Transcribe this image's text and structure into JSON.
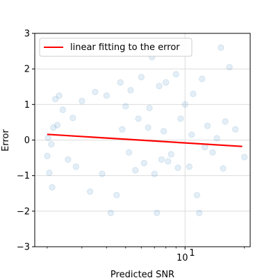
{
  "chart_data": {
    "type": "scatter",
    "xlabel": "Predicted SNR",
    "ylabel": "Error",
    "xscale": "log",
    "xlim": [
      1.73,
      21.4
    ],
    "ylim": [
      -3,
      3
    ],
    "grid": true,
    "legend_position": "top-left",
    "x_major_ticks": [
      {
        "value": 10,
        "label": "10",
        "exponent": "1"
      }
    ],
    "x_minor_ticks": [
      2,
      3,
      4,
      5,
      6,
      7,
      8,
      9,
      20
    ],
    "y_ticks": [
      {
        "value": -3,
        "label": "−3"
      },
      {
        "value": -2,
        "label": "−2"
      },
      {
        "value": -1,
        "label": "−1"
      },
      {
        "value": 0,
        "label": "0"
      },
      {
        "value": 1,
        "label": "1"
      },
      {
        "value": 2,
        "label": "2"
      },
      {
        "value": 3,
        "label": "3"
      }
    ],
    "series": [
      {
        "kind": "scatter",
        "color": "#1f77b4",
        "alpha": 0.12,
        "points": [
          [
            2.02,
            0.06
          ],
          [
            2.1,
            -0.12
          ],
          [
            2.15,
            0.35
          ],
          [
            2.25,
            0.42
          ],
          [
            2.3,
            1.25
          ],
          [
            2.05,
            -0.92
          ],
          [
            2.12,
            -1.33
          ],
          [
            2.4,
            0.85
          ],
          [
            2.55,
            -0.55
          ],
          [
            2.7,
            0.62
          ],
          [
            3.3,
            -1.45
          ],
          [
            3.8,
            -0.95
          ],
          [
            4.2,
            -2.05
          ],
          [
            4.5,
            -1.55
          ],
          [
            4.7,
            1.62
          ],
          [
            5.0,
            0.95
          ],
          [
            5.3,
            1.4
          ],
          [
            5.6,
            -0.85
          ],
          [
            5.8,
            0.6
          ],
          [
            6.0,
            1.77
          ],
          [
            6.8,
            2.33
          ],
          [
            6.2,
            -0.65
          ],
          [
            6.5,
            0.35
          ],
          [
            7.0,
            -0.95
          ],
          [
            7.2,
            -2.05
          ],
          [
            7.4,
            1.52
          ],
          [
            7.6,
            -0.55
          ],
          [
            8.0,
            1.62
          ],
          [
            8.5,
            -0.4
          ],
          [
            9.0,
            1.85
          ],
          [
            9.5,
            0.6
          ],
          [
            10.0,
            1.0
          ],
          [
            10.5,
            -0.75
          ],
          [
            11.0,
            1.3
          ],
          [
            11.5,
            -1.55
          ],
          [
            11.8,
            -2.05
          ],
          [
            12.2,
            1.72
          ],
          [
            13.0,
            0.4
          ],
          [
            14.5,
            0.05
          ],
          [
            15.2,
            2.6
          ],
          [
            15.6,
            -0.8
          ],
          [
            16.0,
            0.52
          ],
          [
            16.8,
            2.05
          ],
          [
            18.0,
            0.3
          ],
          [
            20.0,
            -0.48
          ],
          [
            9.2,
            -0.78
          ],
          [
            8.2,
            -0.6
          ],
          [
            7.8,
            0.25
          ],
          [
            10.8,
            0.15
          ],
          [
            12.6,
            -0.2
          ],
          [
            6.6,
            0.9
          ],
          [
            5.2,
            -0.35
          ],
          [
            4.8,
            0.3
          ],
          [
            4.0,
            1.25
          ],
          [
            3.5,
            1.35
          ],
          [
            3.0,
            1.1
          ],
          [
            2.8,
            -0.75
          ],
          [
            2.2,
            1.15
          ],
          [
            2.0,
            -0.45
          ],
          [
            13.8,
            -0.35
          ]
        ]
      },
      {
        "kind": "line",
        "name": "linear fitting to the error",
        "color": "#ff0000",
        "points": [
          [
            2.0,
            0.16
          ],
          [
            19.5,
            -0.18
          ]
        ]
      }
    ]
  }
}
